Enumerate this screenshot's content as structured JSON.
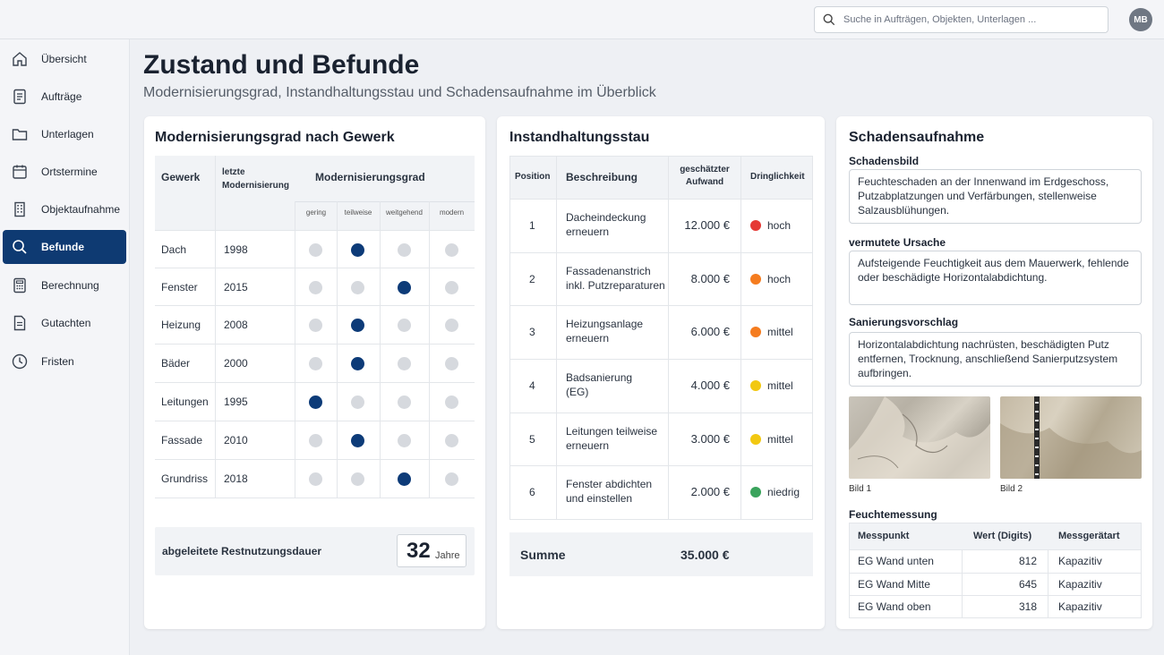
{
  "header": {
    "search_placeholder": "Suche in Aufträgen, Objekten, Unterlagen ...",
    "avatar_initials": "MB"
  },
  "sidebar": {
    "items": [
      {
        "label": "Übersicht",
        "icon": "home-icon"
      },
      {
        "label": "Aufträge",
        "icon": "document-list-icon"
      },
      {
        "label": "Unterlagen",
        "icon": "folder-icon"
      },
      {
        "label": "Ortstermine",
        "icon": "calendar-icon"
      },
      {
        "label": "Objektaufnahme",
        "icon": "building-icon"
      },
      {
        "label": "Befunde",
        "icon": "search-icon",
        "active": true
      },
      {
        "label": "Berechnung",
        "icon": "calculator-icon"
      },
      {
        "label": "Gutachten",
        "icon": "report-icon"
      },
      {
        "label": "Fristen",
        "icon": "clock-icon"
      }
    ]
  },
  "page": {
    "title": "Zustand und Befunde",
    "subtitle": "Modernisierungsgrad, Instandhaltungsstau und Schadensaufnahme im Überblick"
  },
  "modernization": {
    "title": "Modernisierungsgrad nach Gewerk",
    "col_gewerk": "Gewerk",
    "col_last_line1": "letzte",
    "col_last_line2": "Modernisierung",
    "col_grade": "Modernisierungsgrad",
    "levels": [
      "gering",
      "teilweise",
      "weitgehend",
      "modern"
    ],
    "rows": [
      {
        "gewerk": "Dach",
        "year": "1998",
        "level": 1
      },
      {
        "gewerk": "Fenster",
        "year": "2015",
        "level": 2
      },
      {
        "gewerk": "Heizung",
        "year": "2008",
        "level": 1
      },
      {
        "gewerk": "Bäder",
        "year": "2000",
        "level": 1
      },
      {
        "gewerk": "Leitungen",
        "year": "1995",
        "level": 0
      },
      {
        "gewerk": "Fassade",
        "year": "2010",
        "level": 1
      },
      {
        "gewerk": "Grundriss",
        "year": "2018",
        "level": 2
      }
    ],
    "rnd_label": "abgeleitete Restnutzungsdauer",
    "rnd_value": "32",
    "rnd_unit": "Jahre",
    "colors": {
      "active_dot": "#0d3b78",
      "inactive_dot": "#d6d9de"
    }
  },
  "maintenance": {
    "title": "Instandhaltungsstau",
    "col_position": "Position",
    "col_desc": "Beschreibung",
    "col_cost_line1": "geschätzter",
    "col_cost_line2": "Aufwand",
    "col_urgency": "Dringlichkeit",
    "rows": [
      {
        "pos": "1",
        "desc1": "Dacheindeckung",
        "desc2": "erneuern",
        "cost": "12.000 €",
        "urgency": "hoch",
        "color": "#e53935"
      },
      {
        "pos": "2",
        "desc1": "Fassadenanstrich",
        "desc2": "inkl. Putzreparaturen",
        "cost": "8.000 €",
        "urgency": "hoch",
        "color": "#f57c1f"
      },
      {
        "pos": "3",
        "desc1": "Heizungsanlage",
        "desc2": "erneuern",
        "cost": "6.000 €",
        "urgency": "mittel",
        "color": "#f57c1f"
      },
      {
        "pos": "4",
        "desc1": "Badsanierung",
        "desc2": "(EG)",
        "cost": "4.000 €",
        "urgency": "mittel",
        "color": "#f2c811"
      },
      {
        "pos": "5",
        "desc1": "Leitungen teilweise",
        "desc2": "erneuern",
        "cost": "3.000 €",
        "urgency": "mittel",
        "color": "#f2c811"
      },
      {
        "pos": "6",
        "desc1": "Fenster abdichten",
        "desc2": "und einstellen",
        "cost": "2.000 €",
        "urgency": "niedrig",
        "color": "#3aa35c"
      }
    ],
    "sum_label": "Summe",
    "sum_value": "35.000 €"
  },
  "damage": {
    "title": "Schadensaufnahme",
    "schadensbild_label": "Schadensbild",
    "schadensbild_text": "Feuchteschaden an der Innenwand im Erdgeschoss, Putzabplatzungen und Verfärbungen, stellenweise Salzausblühungen.",
    "ursache_label": "vermutete Ursache",
    "ursache_text": "Aufsteigende Feuchtigkeit aus dem Mauerwerk, fehlende oder beschädigte Horizontalabdichtung.",
    "vorschlag_label": "Sanierungsvorschlag",
    "vorschlag_text": "Horizontalabdichtung nachrüsten, beschädigten Putz entfernen, Trocknung, anschließend Sanierputzsystem aufbringen.",
    "photo1_caption": "Bild 1",
    "photo2_caption": "Bild 2",
    "moisture": {
      "title": "Feuchtemessung",
      "col_point": "Messpunkt",
      "col_value": "Wert (Digits)",
      "col_device": "Messgerätart",
      "rows": [
        {
          "point": "EG Wand unten",
          "value": "812",
          "device": "Kapazitiv"
        },
        {
          "point": "EG Wand Mitte",
          "value": "645",
          "device": "Kapazitiv"
        },
        {
          "point": "EG Wand oben",
          "value": "318",
          "device": "Kapazitiv"
        }
      ]
    }
  }
}
